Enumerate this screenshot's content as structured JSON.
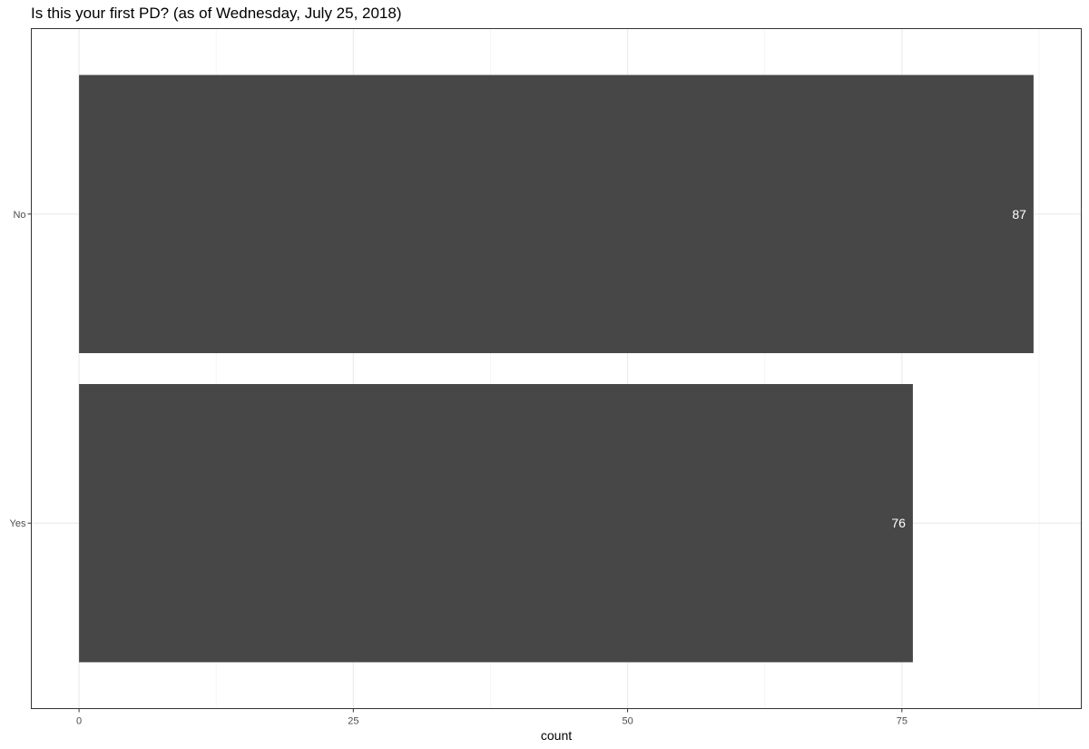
{
  "chart_data": {
    "type": "bar",
    "orientation": "horizontal",
    "title": "Is this your first PD? (as of Wednesday, July 25, 2018)",
    "xlabel": "count",
    "ylabel": "",
    "categories": [
      "No",
      "Yes"
    ],
    "values": [
      87,
      76
    ],
    "data_labels": [
      "87",
      "76"
    ],
    "xlim": [
      -4.35,
      91.35
    ],
    "x_ticks": [
      0,
      25,
      50,
      75
    ],
    "x_tick_labels": [
      "0",
      "25",
      "50",
      "75"
    ],
    "grid": true,
    "legend": "none",
    "colors": {
      "bar": "#474747",
      "label": "#ffffff",
      "grid_major": "#ebebeb",
      "grid_minor": "#f5f5f5",
      "panel_border": "#333333",
      "tick_text": "#4d4d4d"
    }
  }
}
